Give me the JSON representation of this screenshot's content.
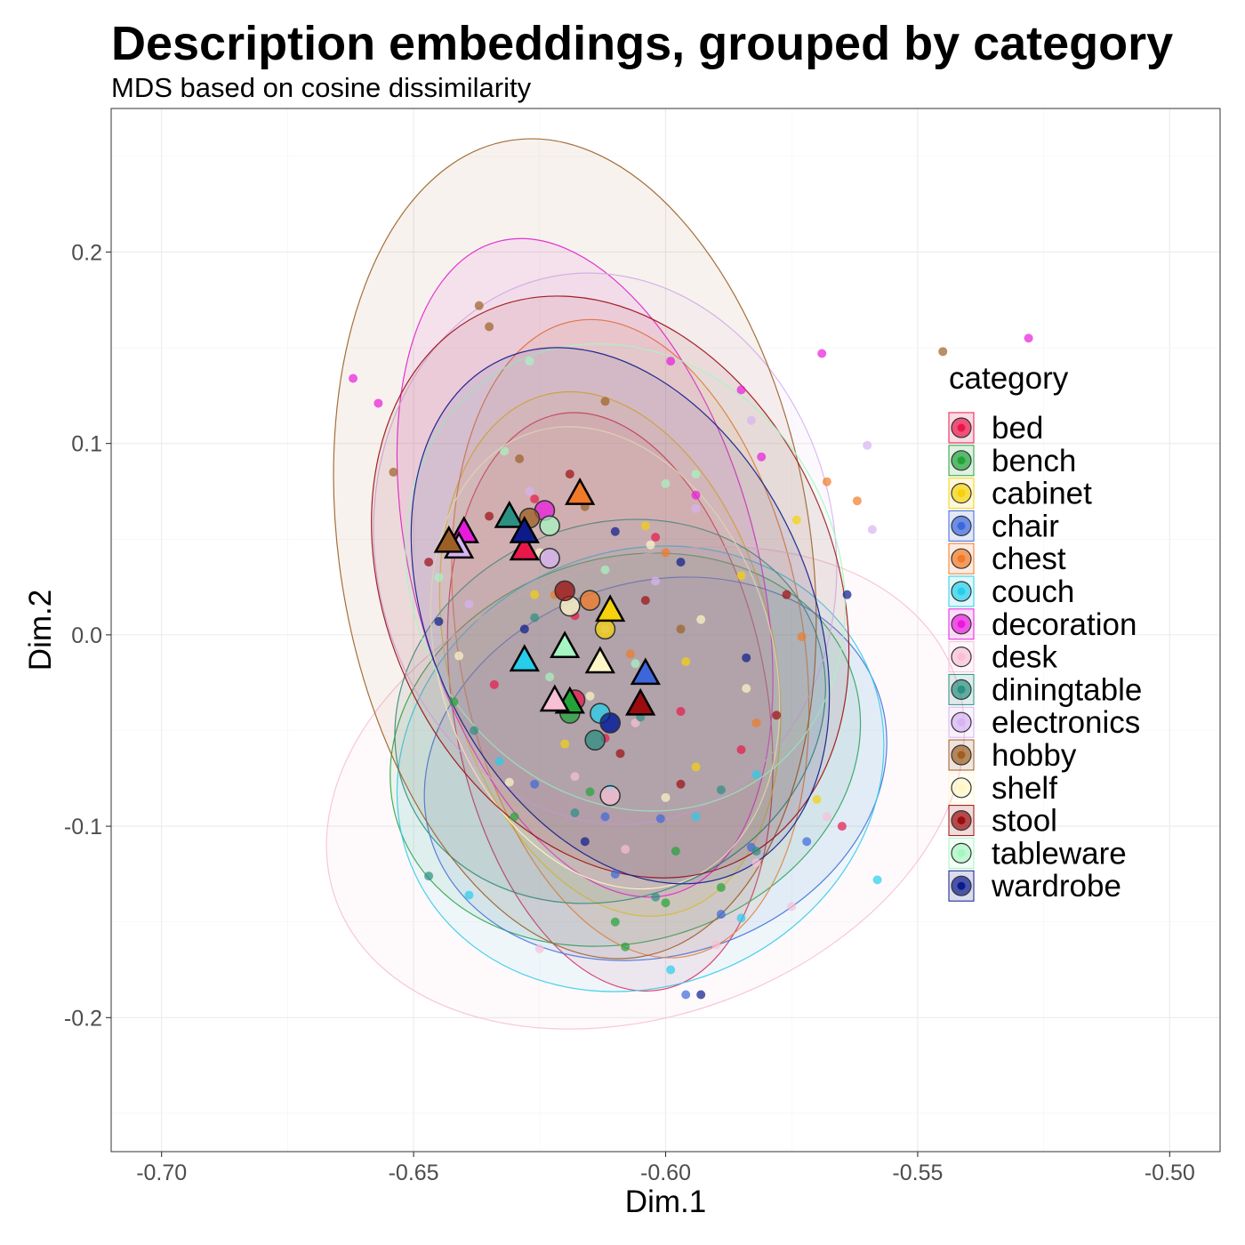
{
  "title": "Description embeddings, grouped by category",
  "subtitle": "MDS based on cosine dissimilarity",
  "chart_data": {
    "type": "scatter",
    "title": "Description embeddings, grouped by category",
    "subtitle": "MDS based on cosine dissimilarity",
    "xlabel": "Dim.1",
    "ylabel": "Dim.2",
    "xlim": [
      -0.71,
      -0.49
    ],
    "ylim": [
      -0.27,
      0.275
    ],
    "xticks": [
      "-0.70",
      "-0.65",
      "-0.60",
      "-0.55",
      "-0.50"
    ],
    "xtick_values": [
      -0.7,
      -0.65,
      -0.6,
      -0.55,
      -0.5
    ],
    "yticks": [
      "0.2",
      "0.1",
      "0.0",
      "-0.1",
      "-0.2"
    ],
    "ytick_values": [
      0.2,
      0.1,
      0.0,
      -0.1,
      -0.2
    ],
    "grid": true,
    "legend": {
      "title": "category",
      "position": "right"
    },
    "series": [
      {
        "name": "bed",
        "color": "#E8174A",
        "triangle": [
          -0.628,
          0.045
        ],
        "circle": [
          -0.618,
          -0.034
        ],
        "ellipse": {
          "cx": -0.611,
          "cy": -0.035,
          "rx": 0.058,
          "ry": 0.082,
          "angle": 80
        },
        "points": [
          [
            -0.626,
            0.071
          ],
          [
            -0.612,
            -0.054
          ],
          [
            -0.597,
            -0.04
          ],
          [
            -0.602,
            0.051
          ],
          [
            -0.565,
            -0.1
          ],
          [
            -0.585,
            -0.06
          ],
          [
            -0.634,
            -0.026
          ],
          [
            -0.618,
            0.01
          ]
        ]
      },
      {
        "name": "bench",
        "color": "#22A33A",
        "triangle": [
          -0.619,
          -0.035
        ],
        "circle": [
          -0.619,
          -0.041
        ],
        "ellipse": {
          "cx": -0.608,
          "cy": -0.06,
          "rx": 0.038,
          "ry": 0.125,
          "angle": 72
        },
        "points": [
          [
            -0.61,
            -0.15
          ],
          [
            -0.6,
            -0.14
          ],
          [
            -0.642,
            -0.035
          ],
          [
            -0.598,
            -0.113
          ],
          [
            -0.615,
            -0.082
          ],
          [
            -0.63,
            -0.095
          ],
          [
            -0.589,
            -0.132
          ],
          [
            -0.608,
            -0.163
          ]
        ]
      },
      {
        "name": "cabinet",
        "color": "#F5D20C",
        "triangle": [
          -0.611,
          0.013
        ],
        "circle": [
          -0.612,
          0.003
        ],
        "ellipse": {
          "cx": -0.611,
          "cy": -0.01,
          "rx": 0.053,
          "ry": 0.085,
          "angle": 76
        },
        "points": [
          [
            -0.604,
            0.057
          ],
          [
            -0.574,
            0.06
          ],
          [
            -0.57,
            -0.086
          ],
          [
            -0.596,
            -0.014
          ],
          [
            -0.62,
            -0.057
          ],
          [
            -0.585,
            0.031
          ],
          [
            -0.594,
            -0.069
          ],
          [
            -0.626,
            0.021
          ]
        ]
      },
      {
        "name": "chair",
        "color": "#3D66DB",
        "triangle": [
          -0.604,
          -0.02
        ],
        "circle": [
          -0.611,
          -0.046
        ],
        "ellipse": {
          "cx": -0.602,
          "cy": -0.07,
          "rx": 0.037,
          "ry": 0.123,
          "angle": 72
        },
        "points": [
          [
            -0.596,
            -0.188
          ],
          [
            -0.61,
            -0.125
          ],
          [
            -0.589,
            -0.146
          ],
          [
            -0.612,
            -0.095
          ],
          [
            -0.572,
            -0.108
          ],
          [
            -0.601,
            -0.096
          ],
          [
            -0.626,
            -0.078
          ],
          [
            -0.583,
            -0.111
          ]
        ]
      },
      {
        "name": "chest",
        "color": "#F07A28",
        "triangle": [
          -0.617,
          0.074
        ],
        "circle": [
          -0.615,
          0.018
        ],
        "ellipse": {
          "cx": -0.607,
          "cy": -0.002,
          "rx": 0.064,
          "ry": 0.09,
          "angle": 80
        },
        "points": [
          [
            -0.562,
            0.07
          ],
          [
            -0.568,
            0.08
          ],
          [
            -0.582,
            -0.046
          ],
          [
            -0.622,
            0.021
          ],
          [
            -0.6,
            0.043
          ],
          [
            -0.573,
            -0.001
          ],
          [
            -0.607,
            -0.01
          ],
          [
            -0.64,
            0.045
          ]
        ]
      },
      {
        "name": "couch",
        "color": "#27CDEB",
        "triangle": [
          -0.628,
          -0.013
        ],
        "circle": [
          -0.613,
          -0.041
        ],
        "ellipse": {
          "cx": -0.605,
          "cy": -0.07,
          "rx": 0.043,
          "ry": 0.13,
          "angle": 65
        },
        "points": [
          [
            -0.558,
            -0.128
          ],
          [
            -0.582,
            -0.073
          ],
          [
            -0.594,
            -0.095
          ],
          [
            -0.639,
            -0.136
          ],
          [
            -0.585,
            -0.148
          ],
          [
            -0.611,
            -0.08
          ],
          [
            -0.599,
            -0.175
          ],
          [
            -0.633,
            -0.066
          ]
        ]
      },
      {
        "name": "decoration",
        "color": "#E81BDC",
        "triangle": [
          -0.64,
          0.054
        ],
        "circle": [
          -0.624,
          0.065
        ],
        "ellipse": {
          "cx": -0.616,
          "cy": 0.035,
          "rx": 0.067,
          "ry": 0.09,
          "angle": 75
        },
        "points": [
          [
            -0.528,
            0.155
          ],
          [
            -0.569,
            0.147
          ],
          [
            -0.585,
            0.128
          ],
          [
            -0.599,
            0.143
          ],
          [
            -0.657,
            0.121
          ],
          [
            -0.662,
            0.134
          ],
          [
            -0.581,
            0.093
          ],
          [
            -0.594,
            0.073
          ]
        ]
      },
      {
        "name": "desk",
        "color": "#F8C0D6",
        "triangle": [
          -0.622,
          -0.034
        ],
        "circle": [
          -0.611,
          -0.084
        ],
        "ellipse": {
          "cx": -0.604,
          "cy": -0.08,
          "rx": 0.045,
          "ry": 0.172,
          "angle": 70
        },
        "points": [
          [
            -0.625,
            -0.164
          ],
          [
            -0.608,
            -0.112
          ],
          [
            -0.575,
            -0.142
          ],
          [
            -0.618,
            -0.074
          ],
          [
            -0.59,
            -0.162
          ],
          [
            -0.606,
            -0.046
          ],
          [
            -0.582,
            -0.119
          ],
          [
            -0.568,
            -0.095
          ]
        ]
      },
      {
        "name": "diningtable",
        "color": "#2B8F82",
        "triangle": [
          -0.631,
          0.062
        ],
        "circle": [
          -0.614,
          -0.055
        ],
        "ellipse": {
          "cx": -0.611,
          "cy": -0.04,
          "rx": 0.037,
          "ry": 0.115,
          "angle": 67
        },
        "points": [
          [
            -0.647,
            -0.126
          ],
          [
            -0.582,
            -0.113
          ],
          [
            -0.605,
            -0.043
          ],
          [
            -0.618,
            -0.093
          ],
          [
            -0.626,
            0.009
          ],
          [
            -0.602,
            -0.137
          ],
          [
            -0.589,
            -0.081
          ],
          [
            -0.638,
            -0.05
          ]
        ]
      },
      {
        "name": "electronics",
        "color": "#D6B4F2",
        "triangle": [
          -0.641,
          0.046
        ],
        "circle": [
          -0.623,
          0.04
        ],
        "ellipse": {
          "cx": -0.612,
          "cy": 0.045,
          "rx": 0.055,
          "ry": 0.12,
          "angle": 79
        },
        "points": [
          [
            -0.56,
            0.099
          ],
          [
            -0.559,
            0.055
          ],
          [
            -0.583,
            0.112
          ],
          [
            -0.594,
            0.066
          ],
          [
            -0.627,
            0.075
          ],
          [
            -0.612,
            0.003
          ],
          [
            -0.639,
            0.016
          ],
          [
            -0.602,
            0.028
          ]
        ]
      },
      {
        "name": "hobby",
        "color": "#9C5F24",
        "triangle": [
          -0.643,
          0.049
        ],
        "circle": [
          -0.627,
          0.061
        ],
        "ellipse": {
          "cx": -0.618,
          "cy": 0.045,
          "rx": 0.082,
          "ry": 0.123,
          "angle": 81
        },
        "points": [
          [
            -0.545,
            0.148
          ],
          [
            -0.637,
            0.172
          ],
          [
            -0.635,
            0.161
          ],
          [
            -0.612,
            0.122
          ],
          [
            -0.654,
            0.085
          ],
          [
            -0.616,
            0.067
          ],
          [
            -0.597,
            0.003
          ],
          [
            -0.629,
            0.092
          ]
        ]
      },
      {
        "name": "shelf",
        "color": "#FFF6C8",
        "triangle": [
          -0.613,
          -0.014
        ],
        "circle": [
          -0.619,
          0.015
        ],
        "ellipse": {
          "cx": -0.612,
          "cy": -0.012,
          "rx": 0.047,
          "ry": 0.087,
          "angle": 72
        },
        "points": [
          [
            -0.6,
            -0.085
          ],
          [
            -0.615,
            -0.032
          ],
          [
            -0.603,
            0.047
          ],
          [
            -0.631,
            -0.077
          ],
          [
            -0.584,
            -0.028
          ],
          [
            -0.625,
            0.043
          ],
          [
            -0.593,
            0.008
          ],
          [
            -0.641,
            -0.011
          ]
        ]
      },
      {
        "name": "stool",
        "color": "#9B0C0F",
        "triangle": [
          -0.605,
          -0.036
        ],
        "circle": [
          -0.62,
          0.023
        ],
        "ellipse": {
          "cx": -0.611,
          "cy": 0.025,
          "rx": 0.06,
          "ry": 0.117,
          "angle": 66
        },
        "points": [
          [
            -0.604,
            0.018
          ],
          [
            -0.578,
            -0.042
          ],
          [
            -0.609,
            -0.062
          ],
          [
            -0.635,
            0.062
          ],
          [
            -0.576,
            0.021
          ],
          [
            -0.647,
            0.038
          ],
          [
            -0.597,
            -0.078
          ],
          [
            -0.619,
            0.084
          ]
        ]
      },
      {
        "name": "tableware",
        "color": "#A6F5C2",
        "triangle": [
          -0.62,
          -0.006
        ],
        "circle": [
          -0.623,
          0.057
        ],
        "ellipse": {
          "cx": -0.608,
          "cy": 0.03,
          "rx": 0.048,
          "ry": 0.11,
          "angle": 58
        },
        "points": [
          [
            -0.627,
            0.143
          ],
          [
            -0.632,
            0.096
          ],
          [
            -0.612,
            0.034
          ],
          [
            -0.594,
            0.084
          ],
          [
            -0.645,
            0.03
          ],
          [
            -0.606,
            -0.015
          ],
          [
            -0.623,
            -0.022
          ],
          [
            -0.6,
            0.079
          ]
        ]
      },
      {
        "name": "wardrobe",
        "color": "#0C1A8A",
        "triangle": [
          -0.628,
          0.054
        ],
        "circle": [
          -0.611,
          -0.046
        ],
        "ellipse": {
          "cx": -0.609,
          "cy": 0.01,
          "rx": 0.056,
          "ry": 0.099,
          "angle": 65
        },
        "points": [
          [
            -0.564,
            0.021
          ],
          [
            -0.593,
            -0.188
          ],
          [
            -0.616,
            -0.108
          ],
          [
            -0.597,
            0.038
          ],
          [
            -0.628,
            0.003
          ],
          [
            -0.584,
            -0.012
          ],
          [
            -0.61,
            0.054
          ],
          [
            -0.645,
            0.007
          ]
        ]
      }
    ]
  }
}
